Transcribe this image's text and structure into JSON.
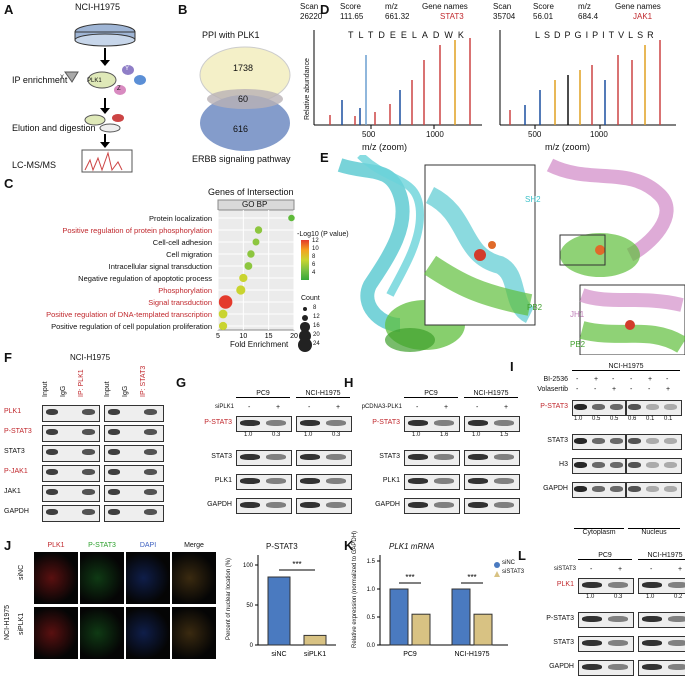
{
  "panel_letters": [
    "A",
    "B",
    "C",
    "D",
    "E",
    "F",
    "G",
    "H",
    "I",
    "J",
    "K",
    "L"
  ],
  "A": {
    "cell": "NCI-H1975",
    "step1": "IP enrichment",
    "step2": "Elution and digestion",
    "step3": "LC-MS/MS",
    "plk1": "PLK1",
    "x": "X",
    "y": "Y",
    "z": "Z"
  },
  "B": {
    "title": "PPI with PLK1",
    "top": "1738",
    "middle": "60",
    "bottom": "616",
    "footer": "ERBB signaling pathway"
  },
  "C": {
    "header": "Genes of Intersection",
    "gobp": "GO BP",
    "xlabel": "Fold Enrichment",
    "legend_title": "-Log10 (P value)",
    "legend_vals": [
      "12",
      "10",
      "8",
      "6",
      "4"
    ],
    "count_title": "Count",
    "count_vals": [
      "8",
      "12",
      "16",
      "20",
      "24"
    ]
  },
  "chart_data": {
    "type": "scatter",
    "title": "GO BP",
    "xlabel": "Fold Enrichment",
    "xlim": [
      5,
      20
    ],
    "xticks": [
      5,
      10,
      15,
      20
    ],
    "categories": [
      "Protein localization",
      "Positive regulation of protein phosphorylation",
      "Cell-cell adhesion",
      "Cell migration",
      "Intracellular signal transduction",
      "Negative regulation of apoptotic process",
      "Phosphorylation",
      "Signal transduction",
      "Positive regulation of DNA-templated transcription",
      "Positive regulation of cell population proliferation"
    ],
    "red_categories": [
      1,
      6,
      7,
      8
    ],
    "x": [
      19.5,
      13,
      12.5,
      11.5,
      11,
      10,
      9.5,
      6.5,
      6,
      6
    ],
    "count": [
      8,
      10,
      9,
      10,
      11,
      12,
      14,
      24,
      13,
      12
    ],
    "neglogp": [
      4,
      6,
      5,
      6,
      6,
      7,
      7,
      12,
      7,
      7
    ]
  },
  "D": {
    "left": {
      "scan_h": "Scan",
      "score_h": "Score",
      "mz_h": "m/z",
      "gene_h": "Gene names",
      "scan": "26220",
      "score": "111.65",
      "mz": "661.32",
      "gene": "STAT3",
      "peptide": [
        "T",
        "L",
        "T",
        "D",
        "E",
        "E",
        "L",
        "A",
        "D",
        "W",
        "K"
      ],
      "ticks": [
        "500",
        "1000"
      ]
    },
    "right": {
      "scan_h": "Scan",
      "score_h": "Score",
      "mz_h": "m/z",
      "gene_h": "Gene names",
      "scan": "35704",
      "score": "56.01",
      "mz": "684.4",
      "gene": "JAK1",
      "peptide": [
        "L",
        "S",
        "D",
        "P",
        "G",
        "I",
        "P",
        "I",
        "T",
        "V",
        "L",
        "S",
        "R"
      ],
      "ticks": [
        "500",
        "1000"
      ]
    },
    "ylabel": "Relative abundance",
    "xlabel": "m/z (zoom)"
  },
  "E": {
    "sh2": "SH2",
    "pb2a": "PB2",
    "pb2b": "PB2",
    "jh1": "JH1"
  },
  "F": {
    "cell": "NCI-H1975",
    "lanes": [
      "Input",
      "IgG",
      "IP: PLK1",
      "Input",
      "IgG",
      "IP: STAT3"
    ],
    "rows": [
      "PLK1",
      "P-STAT3",
      "STAT3",
      "P-JAK1",
      "JAK1",
      "GAPDH"
    ]
  },
  "G": {
    "cells": [
      "PC9",
      "NCI-H1975"
    ],
    "cond": "siPLK1",
    "signs": [
      "-",
      "+",
      "-",
      "+"
    ],
    "rows": [
      "P-STAT3",
      "STAT3",
      "PLK1",
      "GAPDH"
    ],
    "quant": [
      "1.0",
      "0.3",
      "1.0",
      "0.3"
    ]
  },
  "H": {
    "cells": [
      "PC9",
      "NCI-H1975"
    ],
    "cond": "pCDNA3-PLK1",
    "signs": [
      "-",
      "+",
      "-",
      "+"
    ],
    "rows": [
      "P-STAT3",
      "STAT3",
      "PLK1",
      "GAPDH"
    ],
    "quant": [
      "1.0",
      "1.6",
      "1.0",
      "1.5"
    ]
  },
  "I": {
    "cell": "NCI-H1975",
    "cond1": "BI-2536",
    "cond2": "Volasertib",
    "signs1": [
      "-",
      "+",
      "-",
      "-",
      "+",
      "-"
    ],
    "signs2": [
      "-",
      "-",
      "+",
      "-",
      "-",
      "+"
    ],
    "rows": [
      "P-STAT3",
      "STAT3",
      "H3",
      "GAPDH"
    ],
    "quant": [
      "1.0",
      "0.5",
      "0.5",
      "0.6",
      "0.1",
      "0.1"
    ],
    "fractions": [
      "Cytoplasm",
      "Nucleus"
    ]
  },
  "J": {
    "cols": [
      "PLK1",
      "P-STAT3",
      "DAPI",
      "Merge"
    ],
    "rows": [
      "siNC",
      "siPLK1"
    ],
    "cell": "NCI-H1975",
    "plot_title": "P-STAT3",
    "ylabel": "Percent of nuclear location (%)",
    "groups": [
      "siNC",
      "siPLK1"
    ],
    "sig": "***",
    "yticks": [
      "0",
      "50",
      "100"
    ]
  },
  "K": {
    "title": "PLK1 mRNA",
    "ylabel": "Relative expression (normalized to GAPDH)",
    "groups": [
      "PC9",
      "NCI-H1975"
    ],
    "legend": [
      "siNC",
      "siSTAT3"
    ],
    "sig": [
      "***",
      "***"
    ],
    "yticks": [
      "0.0",
      "0.5",
      "1.0",
      "1.5"
    ]
  },
  "L": {
    "cells": [
      "PC9",
      "NCI-H1975"
    ],
    "cond": "siSTAT3",
    "signs": [
      "-",
      "+",
      "-",
      "+"
    ],
    "rows": [
      "PLK1",
      "P-STAT3",
      "STAT3",
      "GAPDH"
    ],
    "quant": [
      "1.0",
      "0.3",
      "1.0",
      "0.2"
    ]
  }
}
